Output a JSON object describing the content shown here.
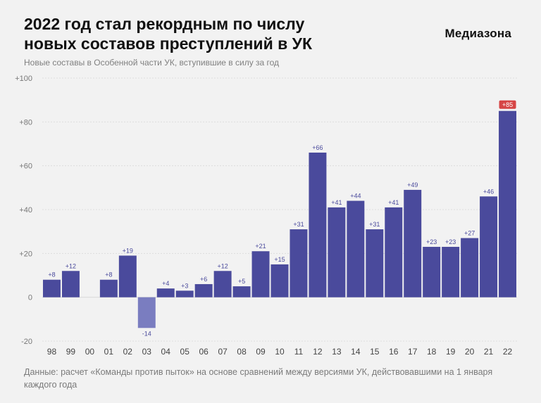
{
  "header": {
    "title_line1": "2022 год стал рекордным по числу",
    "title_line2": "новых составов преступлений в УК",
    "subtitle": "Новые составы в Особенной части УК, вступившие в силу за год",
    "brand": "Медиазона"
  },
  "footnote": "Данные: расчет «Команды против пыток» на основе сравнений между версиями УК, действовавшими на 1 января каждого года",
  "colors": {
    "bar": "#4a4a9c",
    "bar_negative": "#7a7dc0",
    "highlight_badge": "#d64545",
    "grid": "#d9d9d9",
    "label": "#4a4a9c"
  },
  "chart_data": {
    "type": "bar",
    "categories": [
      "98",
      "99",
      "00",
      "01",
      "02",
      "03",
      "04",
      "05",
      "06",
      "07",
      "08",
      "09",
      "10",
      "11",
      "12",
      "13",
      "14",
      "15",
      "16",
      "17",
      "18",
      "19",
      "20",
      "21",
      "22"
    ],
    "values": [
      8,
      12,
      null,
      8,
      19,
      -14,
      4,
      3,
      6,
      12,
      5,
      21,
      15,
      31,
      66,
      41,
      44,
      31,
      41,
      49,
      23,
      23,
      27,
      46,
      85
    ],
    "value_labels": [
      "+8",
      "+12",
      "",
      "+8",
      "+19",
      "-14",
      "+4",
      "+3",
      "+6",
      "+12",
      "+5",
      "+21",
      "+15",
      "+31",
      "+66",
      "+41",
      "+44",
      "+31",
      "+41",
      "+49",
      "+23",
      "+23",
      "+27",
      "+46",
      "+85"
    ],
    "highlight_index": 24,
    "ylim": [
      -20,
      100
    ],
    "yticks": [
      -20,
      0,
      20,
      40,
      60,
      80,
      100
    ],
    "ytick_labels": [
      "-20",
      "0",
      "+20",
      "+40",
      "+60",
      "+80",
      "+100"
    ],
    "grid": true,
    "xlabel": "",
    "ylabel": ""
  }
}
